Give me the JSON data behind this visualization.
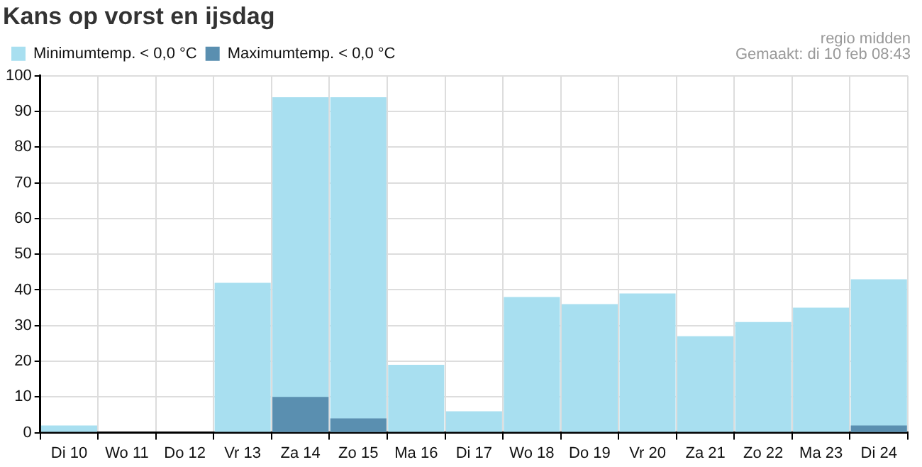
{
  "chart_data": {
    "type": "bar",
    "title": "Kans op vorst en ijsdag",
    "categories": [
      "Di 10",
      "Wo 11",
      "Do 12",
      "Vr 13",
      "Za 14",
      "Zo 15",
      "Ma 16",
      "Di 17",
      "Wo 18",
      "Do 19",
      "Vr 20",
      "Za 21",
      "Zo 22",
      "Ma 23",
      "Di 24"
    ],
    "series": [
      {
        "name": "Minimumtemp. < 0,0 °C",
        "color": "#a8dff0",
        "values": [
          2,
          0,
          0,
          42,
          94,
          94,
          19,
          6,
          38,
          36,
          39,
          27,
          31,
          35,
          43
        ]
      },
      {
        "name": "Maximumtemp. < 0,0 °C",
        "color": "#5a8fb0",
        "values": [
          0,
          0,
          0,
          0,
          10,
          4,
          0,
          0,
          0,
          0,
          0,
          0,
          0,
          0,
          2
        ]
      }
    ],
    "ylim": [
      0,
      100
    ],
    "yticks": [
      0,
      10,
      20,
      30,
      40,
      50,
      60,
      70,
      80,
      90,
      100
    ],
    "grid": true,
    "legend": "top left",
    "annotations": [
      "regio midden",
      "Gemaakt: di 10 feb 08:43"
    ]
  }
}
